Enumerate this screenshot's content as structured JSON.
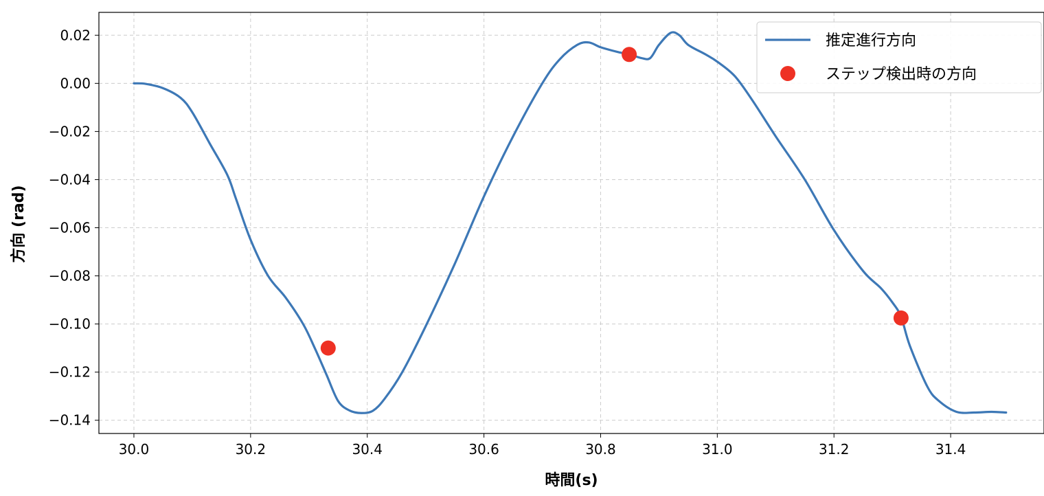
{
  "chart_data": {
    "type": "line",
    "title": "",
    "xlabel": "時間(s)",
    "ylabel": "方向 (rad)",
    "xlim": [
      29.94,
      31.56
    ],
    "ylim": [
      -0.1455,
      0.0295
    ],
    "xticks": [
      30.0,
      30.2,
      30.4,
      30.6,
      30.8,
      31.0,
      31.2,
      31.4
    ],
    "xtick_labels": [
      "30.0",
      "30.2",
      "30.4",
      "30.6",
      "30.8",
      "31.0",
      "31.2",
      "31.4"
    ],
    "yticks": [
      0.02,
      0.0,
      -0.02,
      -0.04,
      -0.06,
      -0.08,
      -0.1,
      -0.12,
      -0.14
    ],
    "ytick_labels": [
      "0.02",
      "0.00",
      "−0.02",
      "−0.04",
      "−0.06",
      "−0.08",
      "−0.10",
      "−0.12",
      "−0.14"
    ],
    "grid": true,
    "legend_position": "top-right",
    "series": [
      {
        "name": "推定進行方向",
        "kind": "line",
        "color": "#3d78b6",
        "x": [
          30.0,
          30.02,
          30.05,
          30.08,
          30.1,
          30.13,
          30.16,
          30.175,
          30.2,
          30.23,
          30.26,
          30.29,
          30.31,
          30.33,
          30.35,
          30.37,
          30.39,
          30.41,
          30.43,
          30.46,
          30.5,
          30.55,
          30.6,
          30.65,
          30.7,
          30.73,
          30.76,
          30.78,
          30.8,
          30.83,
          30.85,
          30.87,
          30.885,
          30.9,
          30.92,
          30.935,
          30.95,
          30.98,
          31.0,
          31.03,
          31.06,
          31.1,
          31.15,
          31.2,
          31.25,
          31.28,
          31.3,
          31.315,
          31.33,
          31.36,
          31.38,
          31.41,
          31.44,
          31.47,
          31.495
        ],
        "y": [
          0.0,
          -0.0002,
          -0.002,
          -0.006,
          -0.012,
          -0.025,
          -0.038,
          -0.048,
          -0.065,
          -0.08,
          -0.089,
          -0.1,
          -0.11,
          -0.121,
          -0.132,
          -0.136,
          -0.137,
          -0.136,
          -0.131,
          -0.12,
          -0.101,
          -0.075,
          -0.047,
          -0.022,
          0.0,
          0.01,
          0.016,
          0.017,
          0.015,
          0.013,
          0.012,
          0.0105,
          0.0105,
          0.016,
          0.021,
          0.02,
          0.016,
          0.012,
          0.009,
          0.003,
          -0.007,
          -0.022,
          -0.04,
          -0.061,
          -0.078,
          -0.085,
          -0.091,
          -0.097,
          -0.109,
          -0.126,
          -0.132,
          -0.1365,
          -0.1368,
          -0.1365,
          -0.1368
        ]
      },
      {
        "name": "ステップ検出時の方向",
        "kind": "scatter",
        "color": "#ee3124",
        "x": [
          30.333,
          30.849,
          31.315
        ],
        "y": [
          -0.11,
          0.012,
          -0.0975
        ]
      }
    ]
  }
}
